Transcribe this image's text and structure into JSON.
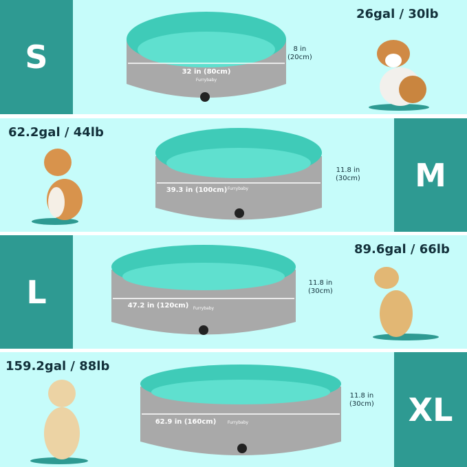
{
  "colors": {
    "background": "#c6fcfa",
    "size_block": "#2e9a92",
    "pool_inner": "#5fe0cf",
    "pool_outer": "#a9a9a9",
    "text": "#12303a"
  },
  "brand": "Furrybaby",
  "sizes": [
    {
      "label": "S",
      "capacity": "26gal / 30lb",
      "width": "32 in (80cm)",
      "height_in": "8 in",
      "height_cm": "(20cm)"
    },
    {
      "label": "M",
      "capacity": "62.2gal / 44lb",
      "width": "39.3 in (100cm)",
      "height_in": "11.8 in",
      "height_cm": "(30cm)"
    },
    {
      "label": "L",
      "capacity": "89.6gal / 66lb",
      "width": "47.2 in (120cm)",
      "height_in": "11.8 in",
      "height_cm": "(30cm)"
    },
    {
      "label": "XL",
      "capacity": "159.2gal / 88lb",
      "width": "62.9 in (160cm)",
      "height_in": "11.8 in",
      "height_cm": "(30cm)"
    }
  ]
}
